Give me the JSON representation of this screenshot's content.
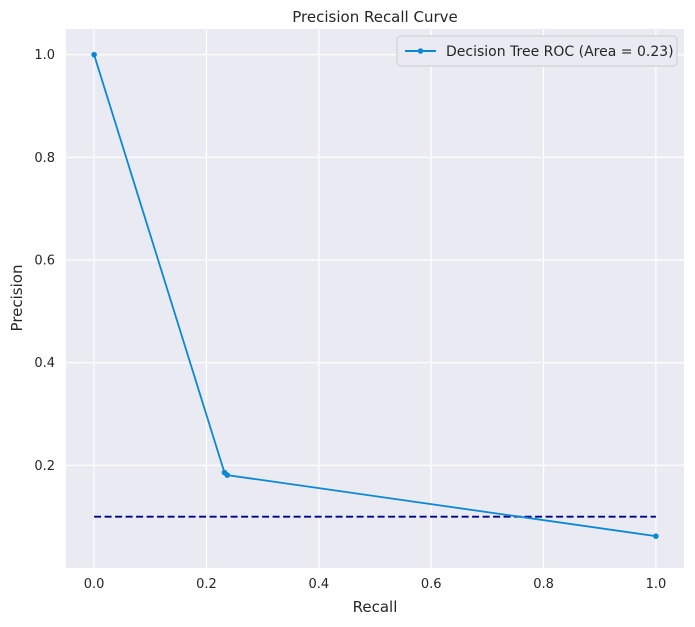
{
  "chart_data": {
    "type": "line",
    "title": "Precision Recall Curve",
    "xlabel": "Recall",
    "ylabel": "Precision",
    "xlim": [
      -0.05,
      1.05
    ],
    "ylim": [
      0.0,
      1.05
    ],
    "xticks": [
      0.0,
      0.2,
      0.4,
      0.6,
      0.8,
      1.0
    ],
    "yticks": [
      0.2,
      0.4,
      0.6,
      0.8,
      1.0
    ],
    "xtick_labels": [
      "0.0",
      "0.2",
      "0.4",
      "0.6",
      "0.8",
      "1.0"
    ],
    "ytick_labels": [
      "0.2",
      "0.4",
      "0.6",
      "0.8",
      "1.0"
    ],
    "grid": true,
    "legend_position": "top-right",
    "series": [
      {
        "name": "Decision Tree ROC (Area = 0.23)",
        "style": "solid",
        "marker": "dot",
        "color": "#0a88d6",
        "x": [
          0.0,
          0.232,
          0.237,
          1.0
        ],
        "y": [
          1.0,
          0.186,
          0.181,
          0.062
        ]
      },
      {
        "style": "dashed",
        "marker": "none",
        "color": "#00008b",
        "x": [
          0.0,
          1.0
        ],
        "y": [
          0.1,
          0.1
        ]
      }
    ]
  },
  "colors": {
    "plot_background": "#eaeaf2",
    "grid": "#ffffff"
  }
}
